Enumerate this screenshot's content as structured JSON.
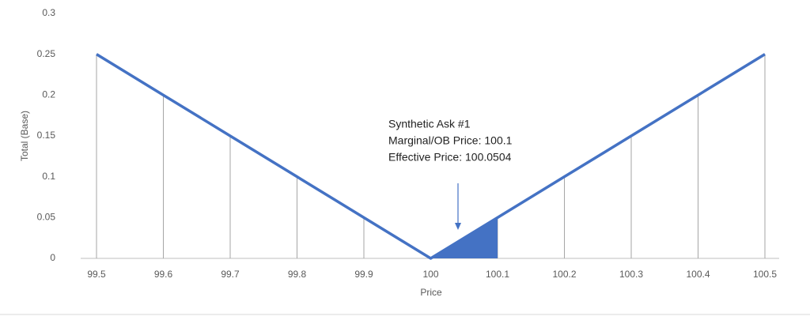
{
  "chart_data": {
    "type": "line",
    "x": [
      99.5,
      99.6,
      99.7,
      99.8,
      99.9,
      100,
      100.1,
      100.2,
      100.3,
      100.4,
      100.5
    ],
    "values": [
      0.25,
      0.2,
      0.15,
      0.1,
      0.05,
      0,
      0.05,
      0.1,
      0.15,
      0.2,
      0.25
    ],
    "color": "#4472c4",
    "xlim": [
      99.5,
      100.5
    ],
    "xticks": [
      99.5,
      99.6,
      99.7,
      99.8,
      99.9,
      100,
      100.1,
      100.2,
      100.3,
      100.4,
      100.5
    ],
    "ylim": [
      0,
      0.3
    ],
    "yticks": [
      0,
      0.05,
      0.1,
      0.15,
      0.2,
      0.25,
      0.3
    ],
    "x_label": "Price",
    "y_label": "Total (Base)",
    "drop_lines": true,
    "shaded_x": [
      100,
      100.1
    ],
    "annotation": [
      "Synthetic Ask #1",
      "Marginal/OB Price: 100.1",
      "Effective Price: 100.0504"
    ]
  }
}
